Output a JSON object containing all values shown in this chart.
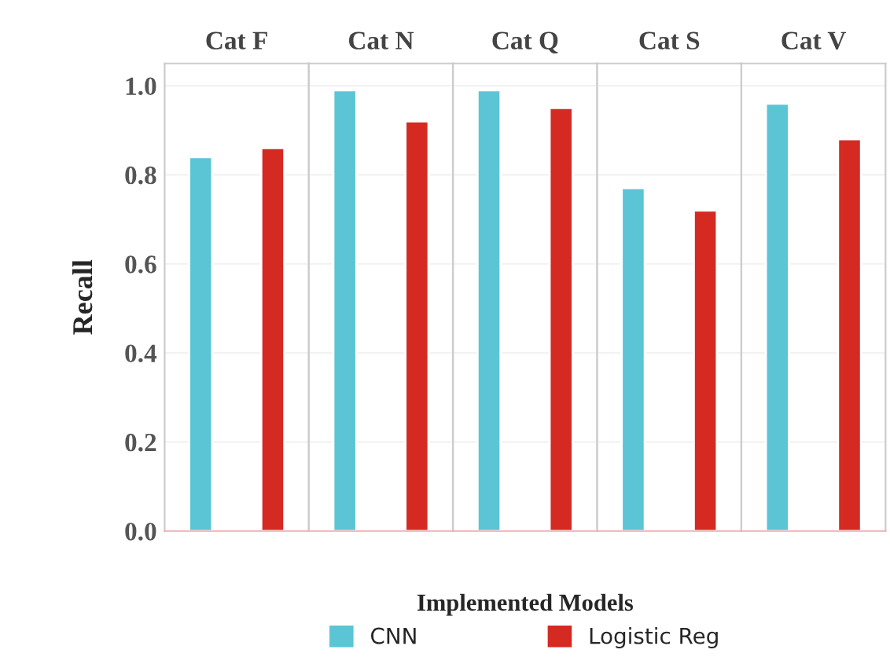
{
  "chart_data": {
    "type": "bar",
    "ylabel": "Recall",
    "legend_title": "Implemented Models",
    "legend": "bottom",
    "categories": [
      "Cat F",
      "Cat N",
      "Cat Q",
      "Cat S",
      "Cat V"
    ],
    "series": [
      {
        "name": "CNN",
        "color": "#5bc5d5",
        "values": [
          0.84,
          0.99,
          0.99,
          0.77,
          0.96
        ]
      },
      {
        "name": "Logistic Reg",
        "color": "#d42a22",
        "values": [
          0.86,
          0.92,
          0.95,
          0.72,
          0.88
        ]
      }
    ],
    "ylim": [
      0,
      1.05
    ],
    "yticks": [
      {
        "value": 0,
        "label": "0.0"
      },
      0.2,
      0.4,
      0.6,
      0.8,
      {
        "value": 1,
        "label": "1.0"
      }
    ],
    "grid": "y"
  }
}
